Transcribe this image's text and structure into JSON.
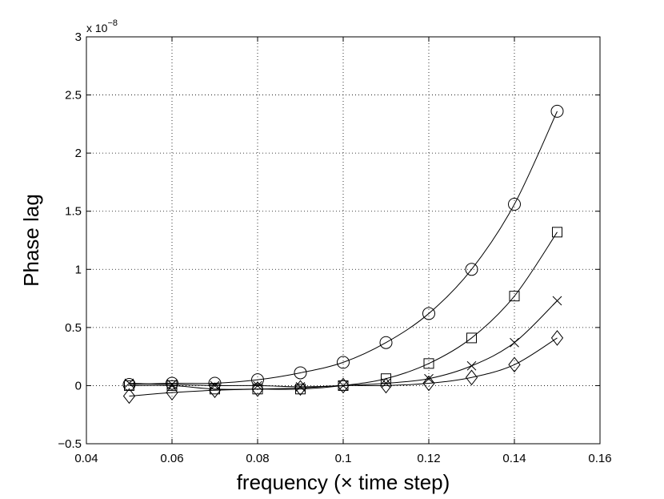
{
  "chart_data": {
    "type": "line",
    "title": "",
    "xlabel": "frequency (× time step)",
    "ylabel": "Phase lag",
    "y_exponent": {
      "base": "x 10",
      "power": "−8"
    },
    "xlim": [
      0.04,
      0.16
    ],
    "ylim": [
      -0.5,
      3
    ],
    "xticks": [
      0.04,
      0.06,
      0.08,
      0.1,
      0.12,
      0.14,
      0.16
    ],
    "xtick_labels": [
      "0.04",
      "0.06",
      "0.08",
      "0.1",
      "0.12",
      "0.14",
      "0.16"
    ],
    "yticks": [
      -0.5,
      0,
      0.5,
      1,
      1.5,
      2,
      2.5,
      3
    ],
    "ytick_labels": [
      "−0.5",
      "0",
      "0.5",
      "1",
      "1.5",
      "2",
      "2.5",
      "3"
    ],
    "grid": true,
    "legend": "none",
    "x": [
      0.05,
      0.06,
      0.07,
      0.08,
      0.09,
      0.1,
      0.11,
      0.12,
      0.13,
      0.14,
      0.15
    ],
    "series": [
      {
        "marker": "circle",
        "values": [
          0.01,
          0.02,
          0.02,
          0.05,
          0.11,
          0.2,
          0.37,
          0.62,
          1.0,
          1.56,
          2.36
        ]
      },
      {
        "marker": "square",
        "values": [
          0.0,
          0.0,
          -0.03,
          -0.03,
          -0.03,
          0.0,
          0.06,
          0.19,
          0.41,
          0.77,
          1.32
        ]
      },
      {
        "marker": "x",
        "values": [
          0.02,
          0.01,
          0.0,
          0.0,
          -0.01,
          0.0,
          0.02,
          0.06,
          0.17,
          0.37,
          0.73
        ]
      },
      {
        "marker": "diamond",
        "values": [
          -0.09,
          -0.06,
          -0.04,
          -0.03,
          -0.02,
          0.0,
          0.0,
          0.02,
          0.07,
          0.18,
          0.41
        ]
      }
    ]
  }
}
